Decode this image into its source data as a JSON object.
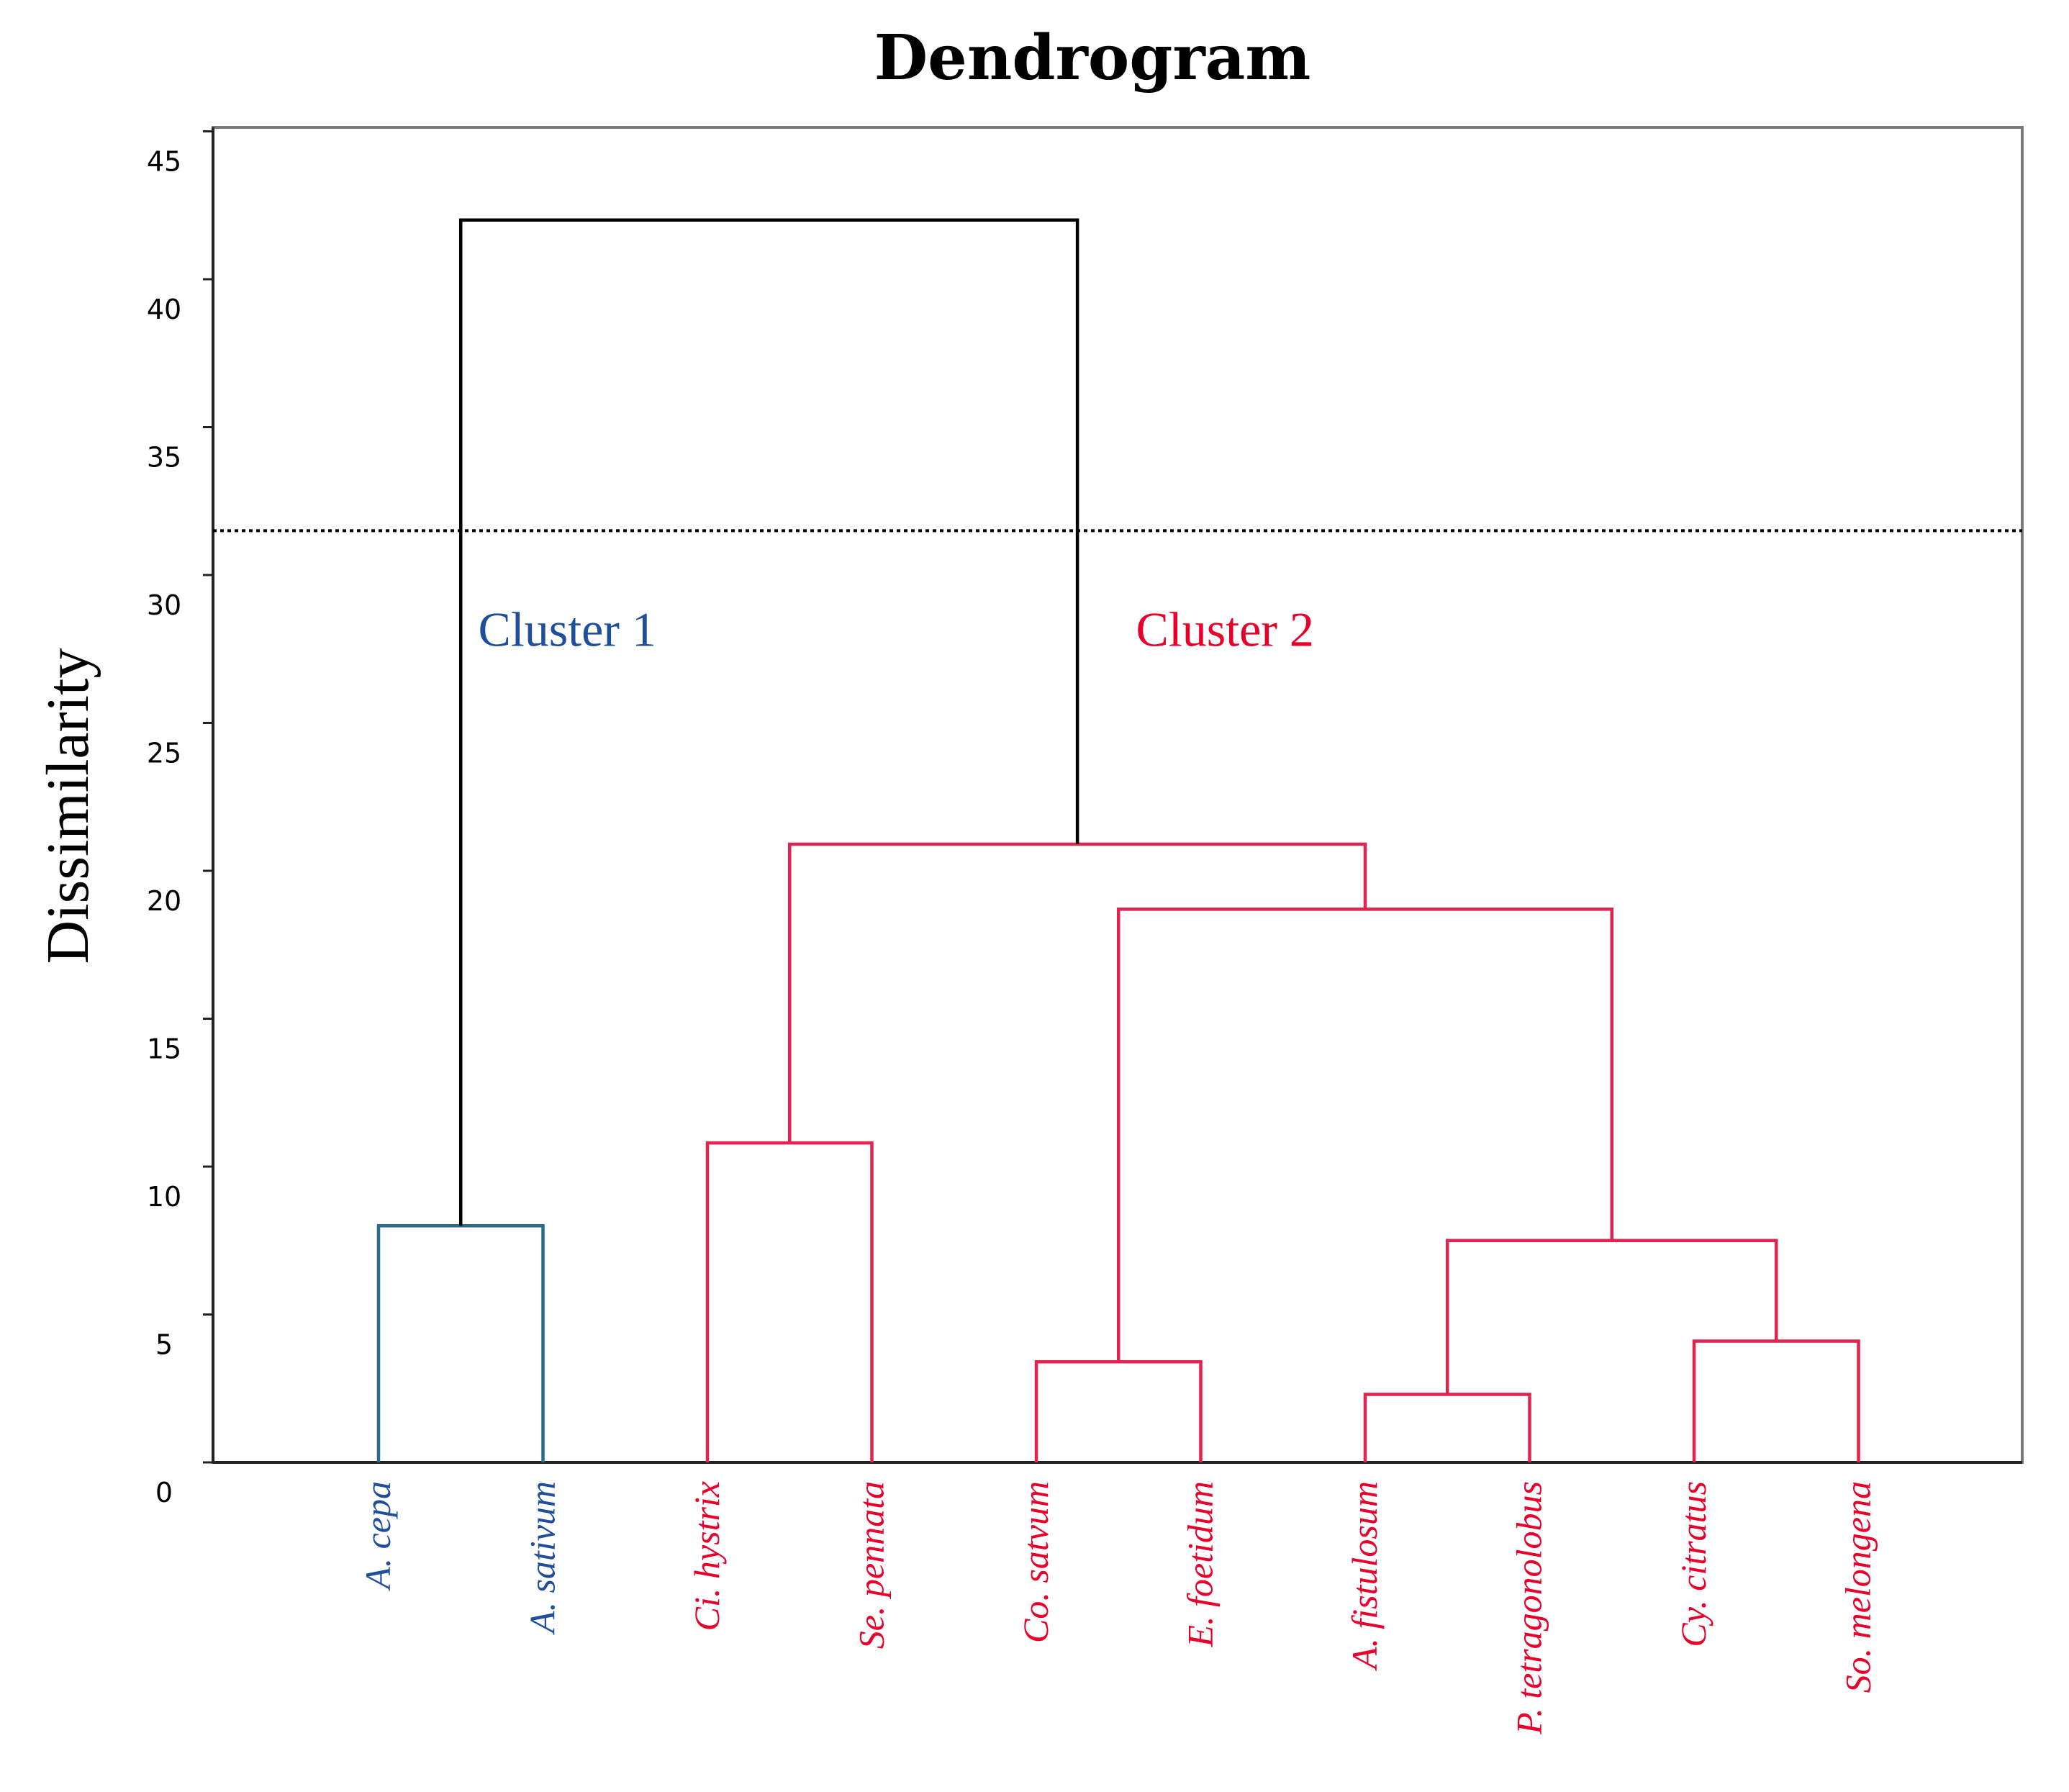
{
  "chart_data": {
    "type": "dendrogram",
    "title": "Dendrogram",
    "ylabel": "Dissimilarity",
    "xlabel": "",
    "ylim": [
      0,
      45
    ],
    "yticks": [
      0,
      5,
      10,
      15,
      20,
      25,
      30,
      35,
      40,
      45
    ],
    "cut_line": 31.5,
    "colors": {
      "cluster1": "#1f4e9b",
      "cluster1_link": "#2b6b8a",
      "cluster2": "#e8002a",
      "cluster2_link": "#e0234f",
      "root": "#000000"
    },
    "leaves": [
      {
        "name": "A. cepa",
        "cluster": 1
      },
      {
        "name": "A. sativum",
        "cluster": 1
      },
      {
        "name": "Ci. hystrix",
        "cluster": 2
      },
      {
        "name": "Se. pennata",
        "cluster": 2
      },
      {
        "name": "Co. satvum",
        "cluster": 2
      },
      {
        "name": "E. foetidum",
        "cluster": 2
      },
      {
        "name": "A. fistulosum",
        "cluster": 2
      },
      {
        "name": "P. tetragonolobus",
        "cluster": 2
      },
      {
        "name": "Cy. citratus",
        "cluster": 2
      },
      {
        "name": "So. melongena",
        "cluster": 2
      }
    ],
    "merges": [
      {
        "id": "m1",
        "left": 0,
        "right": 1,
        "height": 8.0,
        "group": "cluster1"
      },
      {
        "id": "m2",
        "left": 2,
        "right": 3,
        "height": 10.8,
        "group": "cluster2"
      },
      {
        "id": "m3",
        "left": 4,
        "right": 5,
        "height": 3.4,
        "group": "cluster2"
      },
      {
        "id": "m4",
        "left": 6,
        "right": 7,
        "height": 2.3,
        "group": "cluster2"
      },
      {
        "id": "m5",
        "left": 8,
        "right": 9,
        "height": 4.1,
        "group": "cluster2"
      },
      {
        "id": "m6",
        "left": "m4",
        "right": "m5",
        "height": 7.5,
        "group": "cluster2"
      },
      {
        "id": "m7",
        "left": "m3",
        "right": "m6",
        "height": 18.7,
        "group": "cluster2"
      },
      {
        "id": "m8",
        "left": "m2",
        "right": "m7",
        "height": 20.9,
        "group": "cluster2"
      },
      {
        "id": "m9",
        "left": "m1",
        "right": "m8",
        "height": 42.0,
        "group": "root"
      }
    ],
    "annotations": [
      {
        "text": "Cluster 1",
        "cluster": 1,
        "y": 27.6,
        "between": [
          0,
          2
        ]
      },
      {
        "text": "Cluster 2",
        "cluster": 2,
        "y": 27.6,
        "between": [
          4,
          6
        ]
      }
    ]
  }
}
